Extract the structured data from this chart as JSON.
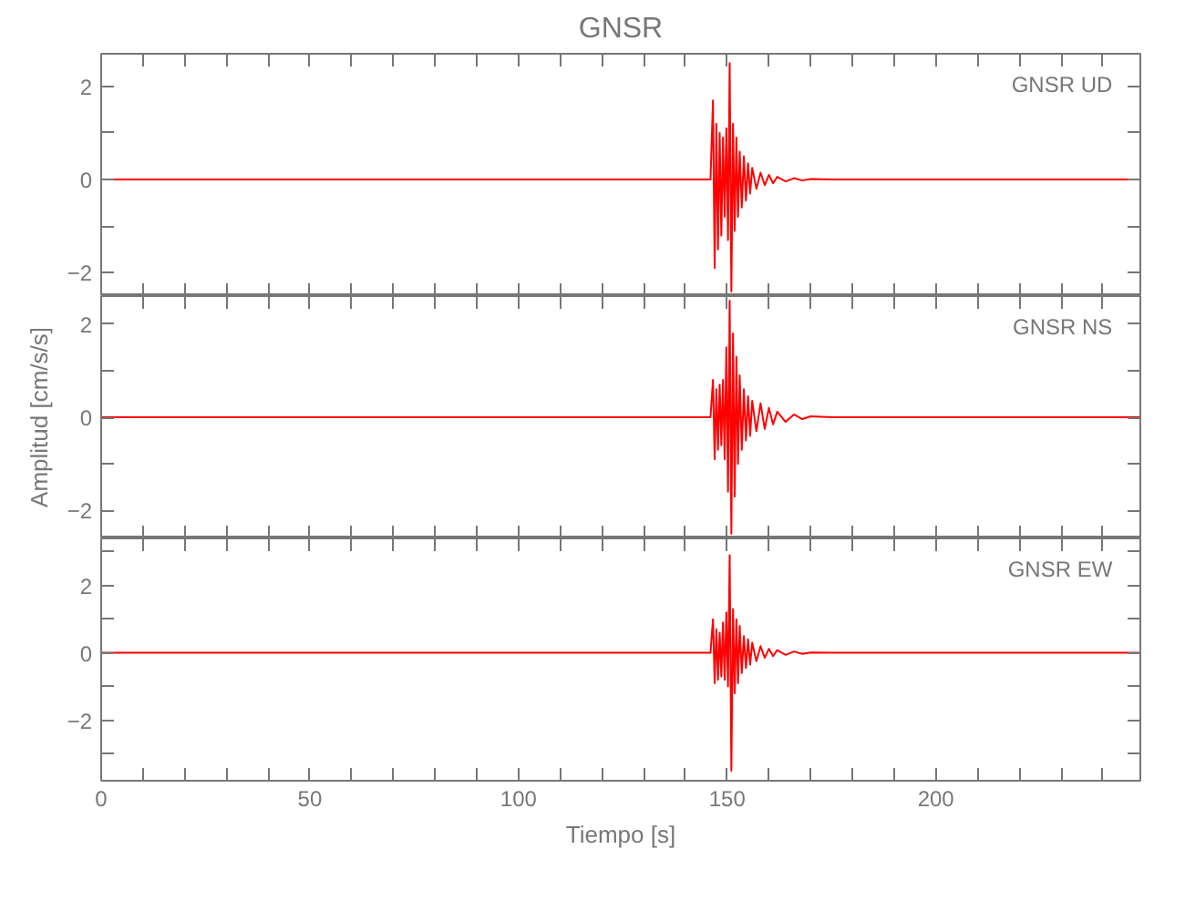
{
  "chart_data": [
    {
      "type": "line",
      "title": "GNSR",
      "annotations": [
        "GNSR  UD"
      ],
      "tick_labels": "y",
      "grid": false,
      "x": [
        0,
        100,
        146,
        146.6,
        147.0,
        147.4,
        147.8,
        148.2,
        148.6,
        149.0,
        149.4,
        149.8,
        150.2,
        150.6,
        151.0,
        151.4,
        151.8,
        152.2,
        152.6,
        153.0,
        153.5,
        154,
        154.5,
        155,
        155.5,
        156,
        157,
        158,
        159,
        160,
        161,
        162,
        164,
        166,
        168,
        170,
        175,
        249
      ],
      "series": [
        {
          "color": "#ff0000",
          "values": [
            0,
            0,
            0,
            1.7,
            -1.9,
            1.2,
            -1.5,
            1.0,
            -1.2,
            0.9,
            -0.8,
            1.1,
            -1.3,
            2.5,
            -2.4,
            1.2,
            -1.1,
            0.9,
            -0.8,
            0.6,
            -0.6,
            0.5,
            -0.45,
            0.35,
            -0.3,
            0.25,
            -0.2,
            0.15,
            -0.12,
            0.1,
            -0.08,
            0.06,
            -0.04,
            0.03,
            -0.02,
            0.01,
            0,
            0
          ]
        }
      ],
      "xlim": [
        0,
        249
      ],
      "ylim": [
        -2.5,
        2.7
      ],
      "xticks": [
        0,
        {
          "value": 10,
          "label": null
        },
        {
          "value": 20,
          "label": null
        },
        {
          "value": 30,
          "label": null
        },
        {
          "value": 40,
          "label": null
        },
        50,
        {
          "value": 60,
          "label": null
        },
        {
          "value": 70,
          "label": null
        },
        {
          "value": 80,
          "label": null
        },
        {
          "value": 90,
          "label": null
        },
        100,
        {
          "value": 110,
          "label": null
        },
        {
          "value": 120,
          "label": null
        },
        {
          "value": 130,
          "label": null
        },
        {
          "value": 140,
          "label": null
        },
        150,
        {
          "value": 160,
          "label": null
        },
        {
          "value": 170,
          "label": null
        },
        {
          "value": 180,
          "label": null
        },
        {
          "value": 190,
          "label": null
        },
        200,
        {
          "value": 210,
          "label": null
        },
        {
          "value": 220,
          "label": null
        },
        {
          "value": 230,
          "label": null
        },
        {
          "value": 240,
          "label": null
        }
      ],
      "yticks": [
        {
          "value": -2,
          "label": "−2"
        },
        {
          "value": -1,
          "label": null
        },
        0,
        {
          "value": 1,
          "label": null
        },
        2
      ]
    },
    {
      "type": "line",
      "ylabel": "Amplitud [cm/s/s]",
      "annotations": [
        "GNSR  NS"
      ],
      "tick_labels": "y",
      "grid": false,
      "x": [
        0,
        100,
        146,
        146.6,
        147.0,
        147.4,
        147.8,
        148.2,
        148.6,
        149.0,
        149.4,
        149.8,
        150.2,
        150.6,
        151.0,
        151.4,
        151.8,
        152.2,
        152.6,
        153.0,
        153.5,
        154,
        154.5,
        155,
        155.5,
        156,
        157,
        158,
        159,
        160,
        161,
        162,
        164,
        166,
        168,
        170,
        175,
        249
      ],
      "series": [
        {
          "color": "#ff0000",
          "values": [
            0,
            0,
            0,
            0.8,
            -0.9,
            0.6,
            -0.7,
            0.7,
            -0.6,
            0.8,
            -0.9,
            1.5,
            -1.6,
            2.5,
            -2.5,
            1.8,
            -1.7,
            1.3,
            -1.0,
            0.9,
            -0.7,
            0.6,
            -0.5,
            0.45,
            -0.4,
            0.35,
            -0.3,
            0.3,
            -0.25,
            0.2,
            -0.15,
            0.12,
            -0.1,
            0.06,
            -0.04,
            0.02,
            0,
            0
          ]
        }
      ],
      "xlim": [
        0,
        249
      ],
      "ylim": [
        -2.6,
        2.6
      ],
      "xticks": [
        0,
        {
          "value": 10,
          "label": null
        },
        {
          "value": 20,
          "label": null
        },
        {
          "value": 30,
          "label": null
        },
        {
          "value": 40,
          "label": null
        },
        50,
        {
          "value": 60,
          "label": null
        },
        {
          "value": 70,
          "label": null
        },
        {
          "value": 80,
          "label": null
        },
        {
          "value": 90,
          "label": null
        },
        100,
        {
          "value": 110,
          "label": null
        },
        {
          "value": 120,
          "label": null
        },
        {
          "value": 130,
          "label": null
        },
        {
          "value": 140,
          "label": null
        },
        150,
        {
          "value": 160,
          "label": null
        },
        {
          "value": 170,
          "label": null
        },
        {
          "value": 180,
          "label": null
        },
        {
          "value": 190,
          "label": null
        },
        200,
        {
          "value": 210,
          "label": null
        },
        {
          "value": 220,
          "label": null
        },
        {
          "value": 230,
          "label": null
        },
        {
          "value": 240,
          "label": null
        }
      ],
      "yticks": [
        {
          "value": -2,
          "label": "−2"
        },
        {
          "value": -1,
          "label": null
        },
        0,
        {
          "value": 1,
          "label": null
        },
        2
      ]
    },
    {
      "type": "line",
      "xlabel": "Tiempo [s]",
      "annotations": [
        "GNSR  EW"
      ],
      "grid": false,
      "x": [
        0,
        100,
        146,
        146.6,
        147.0,
        147.4,
        147.8,
        148.2,
        148.6,
        149.0,
        149.4,
        149.8,
        150.2,
        150.6,
        151.0,
        151.4,
        151.8,
        152.2,
        152.6,
        153.0,
        153.5,
        154,
        154.5,
        155,
        155.5,
        156,
        157,
        158,
        159,
        160,
        161,
        162,
        164,
        166,
        168,
        170,
        175,
        249
      ],
      "series": [
        {
          "color": "#ff0000",
          "values": [
            0,
            0,
            0,
            1.0,
            -0.9,
            0.7,
            -0.8,
            0.6,
            -0.7,
            0.9,
            -0.8,
            1.2,
            -1.0,
            2.9,
            -3.5,
            1.3,
            -1.2,
            1.0,
            -0.9,
            0.8,
            -0.6,
            0.5,
            -0.45,
            0.4,
            -0.35,
            0.3,
            -0.25,
            0.2,
            -0.15,
            0.12,
            -0.1,
            0.08,
            -0.06,
            0.04,
            -0.03,
            0.01,
            0,
            0
          ]
        }
      ],
      "xlim": [
        0,
        249
      ],
      "ylim": [
        -3.8,
        3.4
      ],
      "xticks": [
        0,
        {
          "value": 10,
          "label": null
        },
        {
          "value": 20,
          "label": null
        },
        {
          "value": 30,
          "label": null
        },
        {
          "value": 40,
          "label": null
        },
        50,
        {
          "value": 60,
          "label": null
        },
        {
          "value": 70,
          "label": null
        },
        {
          "value": 80,
          "label": null
        },
        {
          "value": 90,
          "label": null
        },
        100,
        {
          "value": 110,
          "label": null
        },
        {
          "value": 120,
          "label": null
        },
        {
          "value": 130,
          "label": null
        },
        {
          "value": 140,
          "label": null
        },
        150,
        {
          "value": 160,
          "label": null
        },
        {
          "value": 170,
          "label": null
        },
        {
          "value": 180,
          "label": null
        },
        {
          "value": 190,
          "label": null
        },
        200,
        {
          "value": 210,
          "label": null
        },
        {
          "value": 220,
          "label": null
        },
        {
          "value": 230,
          "label": null
        },
        {
          "value": 240,
          "label": null
        }
      ],
      "yticks": [
        {
          "value": -3,
          "label": null
        },
        {
          "value": -2,
          "label": "−2"
        },
        {
          "value": -1,
          "label": null
        },
        0,
        {
          "value": 1,
          "label": null
        },
        2,
        {
          "value": 3,
          "label": null
        }
      ]
    }
  ]
}
